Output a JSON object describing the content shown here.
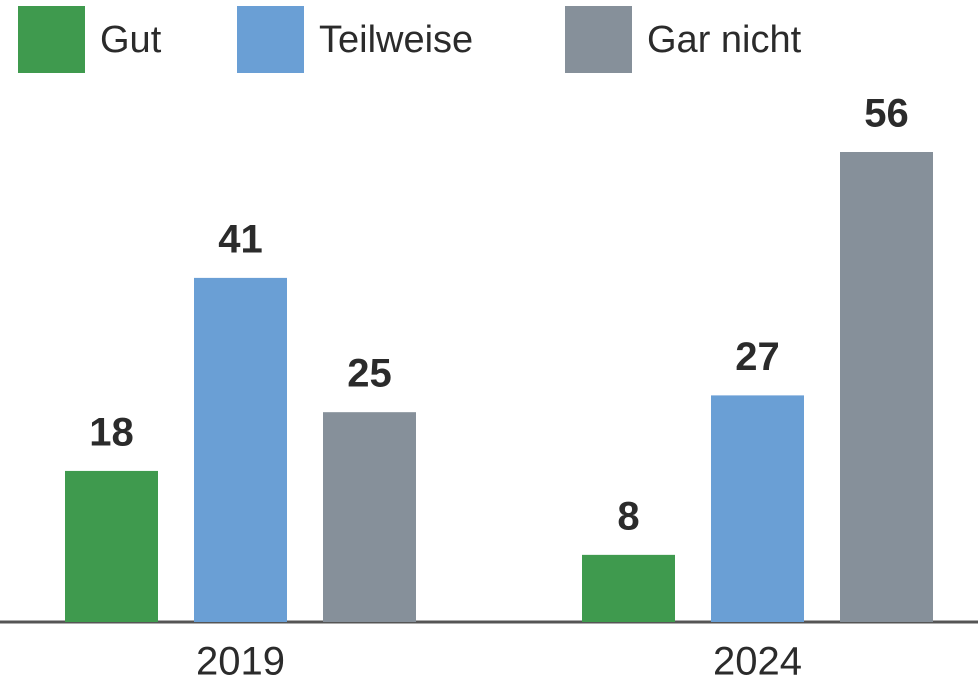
{
  "chart_data": {
    "type": "bar",
    "categories": [
      "2019",
      "2024"
    ],
    "series": [
      {
        "name": "Gut",
        "color": "#3f9a4e",
        "values": [
          18,
          8
        ]
      },
      {
        "name": "Teilweise",
        "color": "#6a9fd5",
        "values": [
          41,
          27
        ]
      },
      {
        "name": "Gar nicht",
        "color": "#86909a",
        "values": [
          25,
          56
        ]
      }
    ],
    "legend": "top-left"
  }
}
